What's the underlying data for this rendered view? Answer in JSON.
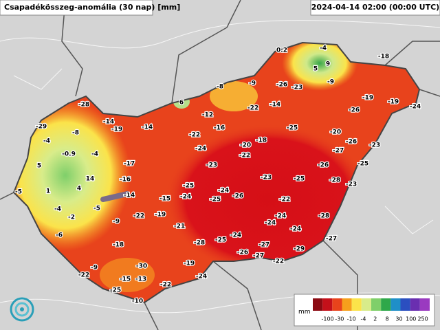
{
  "header": {
    "title": "Csapadékösszeg-anomália (30 nap) [mm]",
    "timestamp": "2024-04-14 02:00 (00:00 UTC)"
  },
  "labels": [
    0.2,
    -4,
    9,
    5,
    -18,
    -9,
    -26,
    -23,
    -9,
    -8,
    6,
    -19,
    -19,
    -24,
    -28,
    -22,
    -14,
    -12,
    -26,
    -14,
    -19,
    -14,
    -16,
    -25,
    -29,
    -8,
    -22,
    -20,
    -18,
    -4,
    -20,
    -26,
    -24,
    -23,
    -0.9,
    -4,
    -27,
    -22,
    -17,
    5,
    -23,
    -26,
    -25,
    14,
    -16,
    -23,
    -25,
    -28,
    -23,
    -5,
    1,
    4,
    -25,
    -24,
    -14,
    -15,
    -24,
    -25,
    -26,
    -22,
    -4,
    -5,
    -22,
    -19,
    -24,
    -28,
    -2,
    -9,
    -24,
    -24,
    -21,
    -6,
    -24,
    -28,
    -25,
    -27,
    -18,
    -27,
    -29,
    -26,
    -27,
    -30,
    -19,
    -22,
    -9,
    -22,
    -15,
    -13,
    -24,
    -22,
    -25,
    -10
  ],
  "legend": {
    "unit": "mm",
    "ticks": [
      -100,
      -30,
      -10,
      -4,
      2,
      8,
      30,
      100,
      250
    ]
  }
}
